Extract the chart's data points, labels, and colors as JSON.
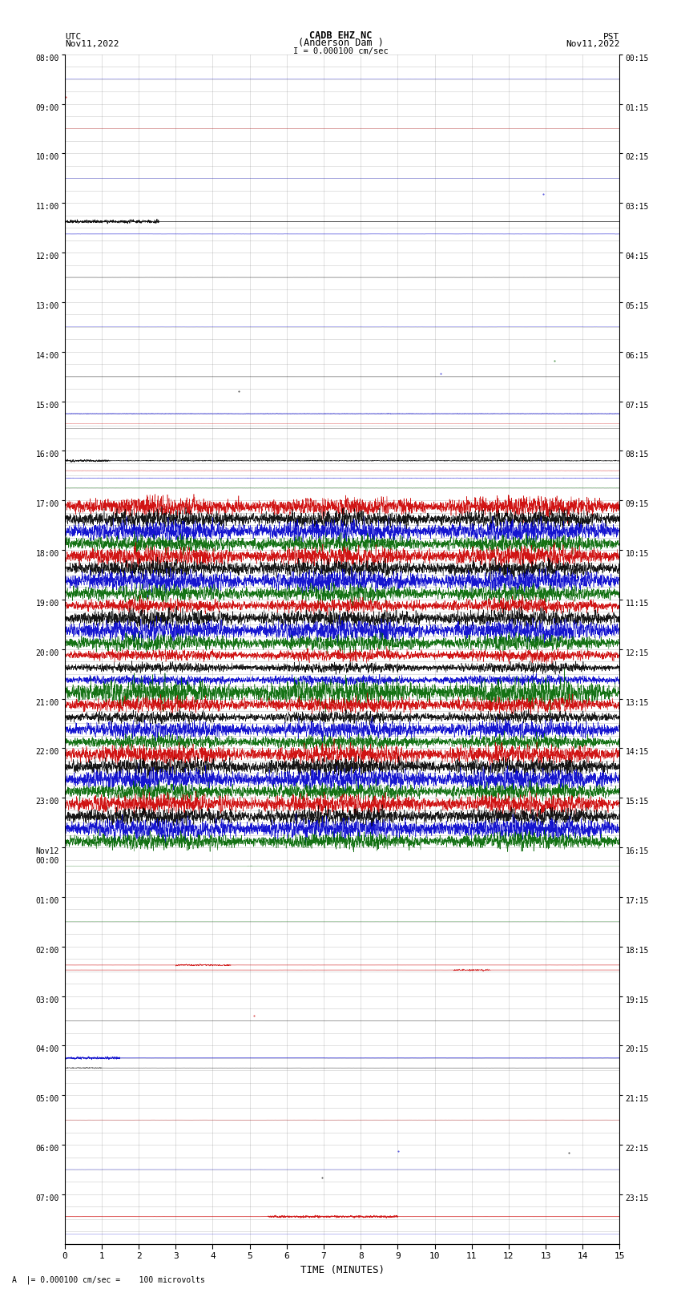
{
  "title_line1": "CADB EHZ NC",
  "title_line2": "(Anderson Dam )",
  "title_line3": "I = 0.000100 cm/sec",
  "left_label_line1": "UTC",
  "left_label_line2": "Nov11,2022",
  "right_label_line1": "PST",
  "right_label_line2": "Nov11,2022",
  "xlabel": "TIME (MINUTES)",
  "bottom_note": "A  |= 0.000100 cm/sec =    100 microvolts",
  "utc_labels": [
    "08:00",
    "09:00",
    "10:00",
    "11:00",
    "12:00",
    "13:00",
    "14:00",
    "15:00",
    "16:00",
    "17:00",
    "18:00",
    "19:00",
    "20:00",
    "21:00",
    "22:00",
    "23:00",
    "Nov12\n00:00",
    "01:00",
    "02:00",
    "03:00",
    "04:00",
    "05:00",
    "06:00",
    "07:00"
  ],
  "pst_labels": [
    "00:15",
    "01:15",
    "02:15",
    "03:15",
    "04:15",
    "05:15",
    "06:15",
    "07:15",
    "08:15",
    "09:15",
    "10:15",
    "11:15",
    "12:15",
    "13:15",
    "14:15",
    "15:15",
    "16:15",
    "17:15",
    "18:15",
    "19:15",
    "20:15",
    "21:15",
    "22:15",
    "23:15"
  ],
  "n_hours": 24,
  "subrows_per_hour": 4,
  "x_min": 0,
  "x_max": 15,
  "x_ticks": [
    0,
    1,
    2,
    3,
    4,
    5,
    6,
    7,
    8,
    9,
    10,
    11,
    12,
    13,
    14,
    15
  ],
  "bg_color": "#ffffff",
  "grid_color": "#888888",
  "colors": {
    "black": "#000000",
    "blue": "#0000cc",
    "red": "#cc0000",
    "green": "#006600"
  },
  "seed": 42
}
